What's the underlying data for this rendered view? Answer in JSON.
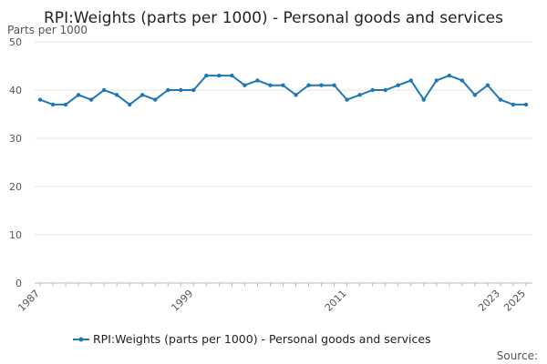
{
  "chart_data": {
    "type": "line",
    "title": "RPI:Weights (parts per 1000) - Personal goods and services",
    "ylabel": "Parts per 1000",
    "xlabel": "",
    "source_label": "Source:",
    "ylim": [
      0,
      50
    ],
    "y_ticks": [
      0,
      10,
      20,
      30,
      40,
      50
    ],
    "x_tick_labels": [
      "1987",
      "1999",
      "2011",
      "2023",
      "2025"
    ],
    "grid": true,
    "legend_position": "bottom",
    "series": [
      {
        "name": "RPI:Weights (parts per 1000) - Personal goods and services",
        "color": "#1f77b4",
        "x": [
          1987,
          1988,
          1989,
          1990,
          1991,
          1992,
          1993,
          1994,
          1995,
          1996,
          1997,
          1998,
          1999,
          2000,
          2001,
          2002,
          2003,
          2004,
          2005,
          2006,
          2007,
          2008,
          2009,
          2010,
          2011,
          2012,
          2013,
          2014,
          2015,
          2016,
          2017,
          2018,
          2019,
          2020,
          2021,
          2022,
          2023,
          2024,
          2025
        ],
        "values": [
          38,
          37,
          37,
          39,
          38,
          40,
          39,
          37,
          39,
          38,
          40,
          40,
          40,
          43,
          43,
          43,
          41,
          42,
          41,
          41,
          39,
          41,
          41,
          41,
          38,
          39,
          40,
          40,
          41,
          42,
          38,
          42,
          43,
          42,
          39,
          41,
          38,
          37,
          37
        ]
      }
    ]
  }
}
